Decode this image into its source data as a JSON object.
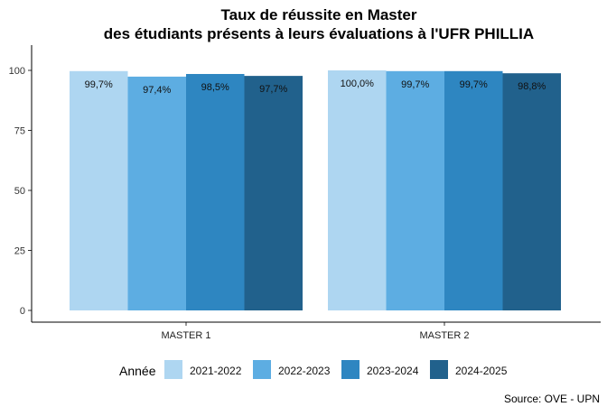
{
  "chart_data": {
    "type": "bar",
    "title": [
      "Taux de réussite en Master",
      "des étudiants présents à leurs évaluations à l'UFR PHILLIA"
    ],
    "xlabel": "",
    "ylabel": "",
    "ylim": [
      0,
      100
    ],
    "yticks": [
      "0",
      "25",
      "50",
      "75",
      "100"
    ],
    "categories": [
      "MASTER 1",
      "MASTER 2"
    ],
    "legend_title": "Année",
    "legend_position": "bottom",
    "grid": false,
    "series": [
      {
        "name": "2021-2022",
        "color": "#aed6f1",
        "values": [
          99.7,
          100.0
        ],
        "labels": [
          "99,7%",
          "100,0%"
        ]
      },
      {
        "name": "2022-2023",
        "color": "#5dade2",
        "values": [
          97.4,
          99.7
        ],
        "labels": [
          "97,4%",
          "99,7%"
        ]
      },
      {
        "name": "2023-2024",
        "color": "#2e86c1",
        "values": [
          98.5,
          99.7
        ],
        "labels": [
          "98,5%",
          "99,7%"
        ]
      },
      {
        "name": "2024-2025",
        "color": "#21618c",
        "values": [
          97.7,
          98.8
        ],
        "labels": [
          "97,7%",
          "98,8%"
        ]
      }
    ],
    "caption": "Source: OVE - UPN"
  }
}
